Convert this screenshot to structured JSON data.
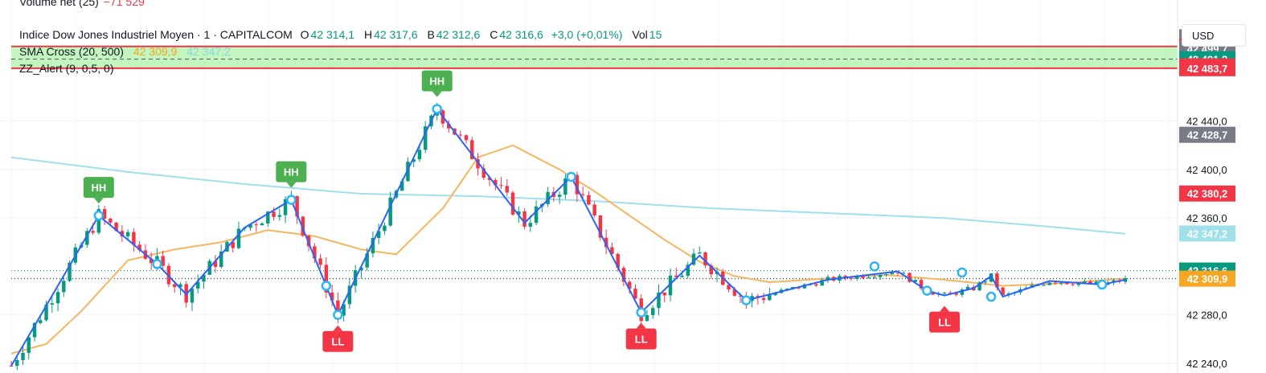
{
  "legend": {
    "volume_label": "Volume net (25)",
    "volume_value": "−71 529",
    "symbol": "Indice Dow Jones Industriel Moyen · 1 · CAPITALCOM",
    "o_label": "O",
    "o_value": "42 314,1",
    "h_label": "H",
    "h_value": "42 317,6",
    "b_label": "B",
    "b_value": "42 312,6",
    "c_label": "C",
    "c_value": "42 316,6",
    "change": "+3,0 (+0,01%)",
    "vol_label": "Vol",
    "vol_value": "15",
    "sma_label": "SMA Cross (20, 500)",
    "sma_fast": "42 309,9",
    "sma_slow": "42 347,2",
    "zz_label": "ZZ_Alert (9, 0,5, 0)"
  },
  "currency": "USD",
  "colors": {
    "up": "#089981",
    "down": "#f23645",
    "sma_fast": "#f7b560",
    "sma_slow": "#9fe0ea",
    "zigzag": "#2962ff",
    "marker": "#29b6f6",
    "hh_tag": "#4caf50",
    "ll_tag": "#f23645",
    "zone": "#b9f3b4"
  },
  "chart_data": {
    "type": "candlestick",
    "ylim": [
      42232,
      42540
    ],
    "y_ticks": [
      "42 240,0",
      "42 280,0",
      "42 360,0",
      "42 400,0",
      "42 440,0"
    ],
    "y_tick_values": [
      42240,
      42280,
      42360,
      42400,
      42440
    ],
    "price_labels": [
      {
        "value": 42509.2,
        "text": "42 509,2",
        "color": "#787b86"
      },
      {
        "value": 42501.7,
        "text": "42 501,7",
        "color": "#f23645"
      },
      {
        "value": 42499.7,
        "text": "42 499,7",
        "color": "#787b86"
      },
      {
        "value": 42491.2,
        "text": "42 491,2",
        "color": "#089981"
      },
      {
        "value": 42485.2,
        "text": "42 485,2",
        "color": "#f23645"
      },
      {
        "value": 42483.7,
        "text": "42 483,7",
        "color": "#f23645"
      },
      {
        "value": 42428.7,
        "text": "42 428,7",
        "color": "#787b86"
      },
      {
        "value": 42380.2,
        "text": "42 380,2",
        "color": "#f23645"
      },
      {
        "value": 42347.2,
        "text": "42 347,2",
        "color": "#9fe0ea"
      },
      {
        "value": 42316.6,
        "text": "42 316,6",
        "color": "#089981"
      },
      {
        "value": 42309.9,
        "text": "42 309,9",
        "color": "#f5a623"
      }
    ],
    "horizontal_lines": [
      {
        "value": 42501.7,
        "color": "#f23645"
      },
      {
        "value": 42483.7,
        "color": "#f23645"
      }
    ],
    "zone": {
      "from": 42483.7,
      "to": 42502.0,
      "mid": 42491.2
    },
    "close_line": 42316.6,
    "sma_line": 42309.9,
    "zigzag": [
      [
        0,
        42238
      ],
      [
        15,
        42362
      ],
      [
        25,
        42322
      ],
      [
        30,
        42297
      ],
      [
        40,
        42352
      ],
      [
        48,
        42375
      ],
      [
        56,
        42280
      ],
      [
        73,
        42450
      ],
      [
        88,
        42356
      ],
      [
        96,
        42394
      ],
      [
        108,
        42282
      ],
      [
        118,
        42329
      ],
      [
        126,
        42292
      ],
      [
        140,
        42309
      ],
      [
        152,
        42316
      ],
      [
        157,
        42300
      ],
      [
        160,
        42296
      ],
      [
        165,
        42302
      ],
      [
        168,
        42312
      ],
      [
        170,
        42295
      ],
      [
        178,
        42308
      ],
      [
        187,
        42305
      ],
      [
        191,
        42309
      ]
    ],
    "zigzag_markers": [
      [
        15,
        42362
      ],
      [
        25,
        42322
      ],
      [
        48,
        42375
      ],
      [
        54,
        42304
      ],
      [
        56,
        42280
      ],
      [
        73,
        42450
      ],
      [
        96,
        42394
      ],
      [
        108,
        42282
      ],
      [
        126,
        42292
      ],
      [
        148,
        42320
      ],
      [
        157,
        42300
      ],
      [
        163,
        42315
      ],
      [
        168,
        42295
      ],
      [
        187,
        42305
      ]
    ],
    "tags": [
      {
        "text": "HH",
        "type": "HH",
        "x": 15,
        "y": 42362
      },
      {
        "text": "HH",
        "type": "HH",
        "x": 48,
        "y": 42375
      },
      {
        "text": "HH",
        "type": "HH",
        "x": 73,
        "y": 42450
      },
      {
        "text": "LL",
        "type": "LL",
        "x": 56,
        "y": 42280
      },
      {
        "text": "LL",
        "type": "LL",
        "x": 108,
        "y": 42282
      },
      {
        "text": "LL",
        "type": "LL",
        "x": 160,
        "y": 42296
      }
    ],
    "sma_fast_series": [
      [
        0,
        42248
      ],
      [
        6,
        42256
      ],
      [
        12,
        42283
      ],
      [
        20,
        42325
      ],
      [
        28,
        42334
      ],
      [
        36,
        42340
      ],
      [
        44,
        42350
      ],
      [
        52,
        42345
      ],
      [
        60,
        42334
      ],
      [
        66,
        42330
      ],
      [
        74,
        42368
      ],
      [
        80,
        42410
      ],
      [
        86,
        42420
      ],
      [
        94,
        42400
      ],
      [
        100,
        42382
      ],
      [
        106,
        42362
      ],
      [
        112,
        42342
      ],
      [
        118,
        42324
      ],
      [
        124,
        42312
      ],
      [
        130,
        42307
      ],
      [
        140,
        42310
      ],
      [
        150,
        42313
      ],
      [
        160,
        42309
      ],
      [
        170,
        42304
      ],
      [
        180,
        42306
      ],
      [
        191,
        42310
      ]
    ],
    "sma_slow_series": [
      [
        0,
        42410
      ],
      [
        20,
        42398
      ],
      [
        40,
        42388
      ],
      [
        60,
        42380
      ],
      [
        80,
        42378
      ],
      [
        100,
        42374
      ],
      [
        120,
        42368
      ],
      [
        140,
        42364
      ],
      [
        160,
        42360
      ],
      [
        180,
        42352
      ],
      [
        191,
        42347
      ]
    ],
    "candle_count": 192
  }
}
